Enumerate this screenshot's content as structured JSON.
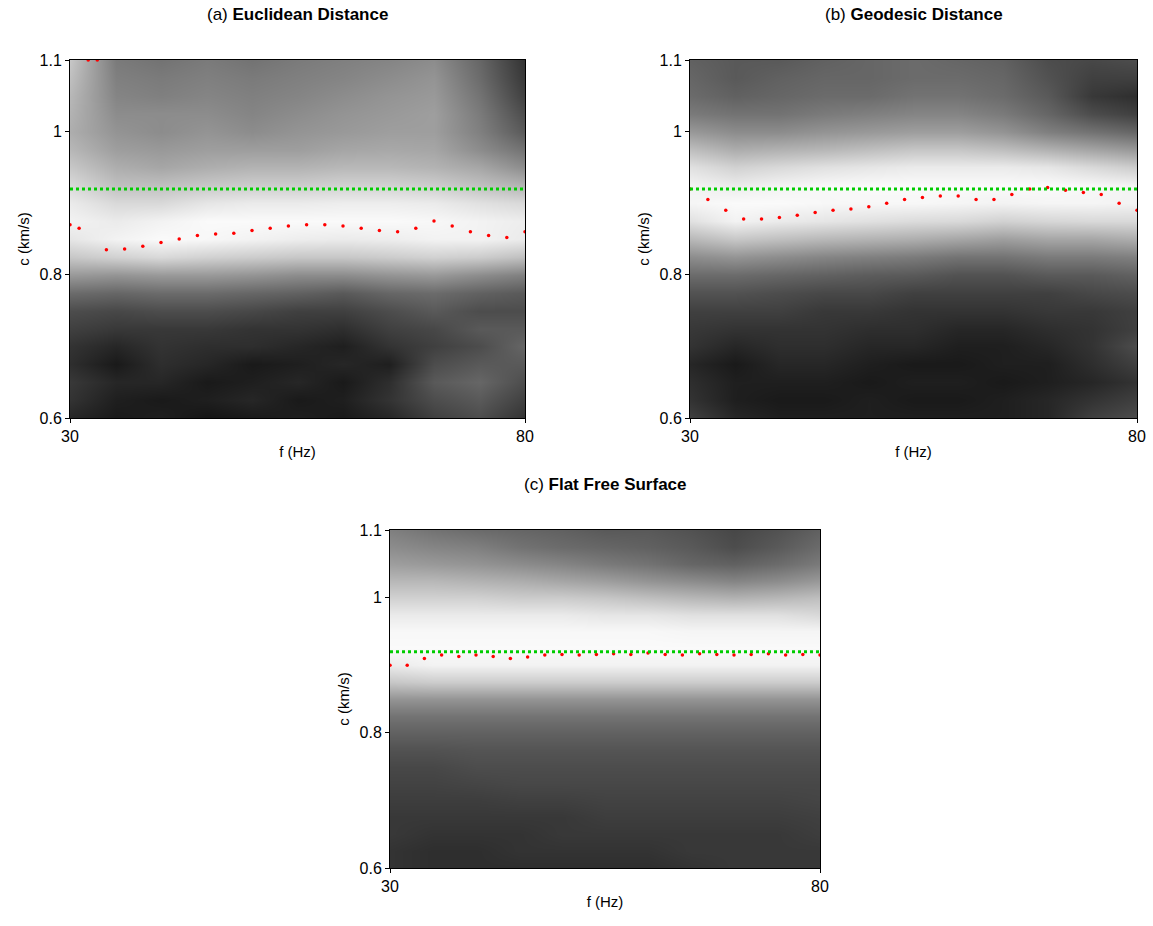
{
  "chart_data": [
    {
      "type": "heatmap",
      "title": "(a) Euclidean Distance",
      "x_label": "f (Hz)",
      "y_label": "c (km/s)",
      "xlim": [
        30,
        80
      ],
      "xticks": [
        30,
        80
      ],
      "ylim": [
        0.6,
        1.1
      ],
      "yticks": [
        0.6,
        0.8,
        1,
        1.1
      ],
      "zlim": [
        0,
        1
      ],
      "x": [
        30,
        35,
        40,
        45,
        50,
        55,
        60,
        65,
        70,
        75,
        80
      ],
      "y": [
        0.6,
        0.625,
        0.65,
        0.675,
        0.7,
        0.725,
        0.75,
        0.775,
        0.8,
        0.825,
        0.85,
        0.875,
        0.9,
        0.925,
        0.95,
        0.975,
        1.0,
        1.025,
        1.05,
        1.075,
        1.1
      ],
      "z": [
        [
          0.15,
          0.1,
          0.12,
          0.08,
          0.1,
          0.12,
          0.1,
          0.15,
          0.25,
          0.3,
          0.2
        ],
        [
          0.2,
          0.12,
          0.1,
          0.12,
          0.15,
          0.1,
          0.12,
          0.2,
          0.3,
          0.35,
          0.25
        ],
        [
          0.22,
          0.15,
          0.15,
          0.1,
          0.12,
          0.15,
          0.1,
          0.18,
          0.35,
          0.4,
          0.3
        ],
        [
          0.18,
          0.1,
          0.18,
          0.15,
          0.1,
          0.12,
          0.15,
          0.12,
          0.3,
          0.35,
          0.35
        ],
        [
          0.2,
          0.15,
          0.2,
          0.18,
          0.18,
          0.15,
          0.12,
          0.2,
          0.25,
          0.3,
          0.4
        ],
        [
          0.25,
          0.22,
          0.22,
          0.22,
          0.2,
          0.2,
          0.18,
          0.25,
          0.28,
          0.35,
          0.35
        ],
        [
          0.3,
          0.28,
          0.3,
          0.3,
          0.28,
          0.25,
          0.25,
          0.3,
          0.35,
          0.3,
          0.3
        ],
        [
          0.42,
          0.4,
          0.42,
          0.42,
          0.4,
          0.38,
          0.35,
          0.4,
          0.42,
          0.38,
          0.35
        ],
        [
          0.6,
          0.58,
          0.6,
          0.6,
          0.58,
          0.55,
          0.55,
          0.58,
          0.6,
          0.55,
          0.5
        ],
        [
          0.78,
          0.82,
          0.85,
          0.82,
          0.8,
          0.78,
          0.78,
          0.8,
          0.82,
          0.8,
          0.75
        ],
        [
          0.9,
          0.95,
          0.98,
          0.97,
          0.95,
          0.93,
          0.92,
          0.93,
          0.95,
          0.95,
          0.92
        ],
        [
          0.95,
          0.92,
          0.95,
          0.98,
          0.98,
          0.98,
          0.98,
          0.98,
          0.97,
          0.95,
          0.93
        ],
        [
          0.92,
          0.85,
          0.85,
          0.9,
          0.92,
          0.92,
          0.93,
          0.93,
          0.92,
          0.88,
          0.85
        ],
        [
          0.85,
          0.75,
          0.75,
          0.78,
          0.8,
          0.8,
          0.82,
          0.82,
          0.8,
          0.75,
          0.7
        ],
        [
          0.78,
          0.68,
          0.65,
          0.68,
          0.7,
          0.7,
          0.72,
          0.72,
          0.7,
          0.65,
          0.55
        ],
        [
          0.72,
          0.62,
          0.6,
          0.62,
          0.62,
          0.62,
          0.65,
          0.66,
          0.65,
          0.55,
          0.45
        ],
        [
          0.68,
          0.58,
          0.55,
          0.58,
          0.55,
          0.58,
          0.6,
          0.62,
          0.62,
          0.5,
          0.35
        ],
        [
          0.7,
          0.55,
          0.55,
          0.55,
          0.52,
          0.55,
          0.58,
          0.6,
          0.62,
          0.48,
          0.3
        ],
        [
          0.72,
          0.52,
          0.5,
          0.52,
          0.5,
          0.52,
          0.55,
          0.58,
          0.6,
          0.45,
          0.25
        ],
        [
          0.75,
          0.5,
          0.48,
          0.5,
          0.48,
          0.5,
          0.52,
          0.55,
          0.58,
          0.42,
          0.22
        ],
        [
          0.78,
          0.48,
          0.45,
          0.48,
          0.45,
          0.48,
          0.5,
          0.52,
          0.55,
          0.4,
          0.2
        ]
      ],
      "series": [
        {
          "type": "scatter",
          "color": "#ff0000",
          "marker": "dot",
          "x": [
            30,
            31,
            32,
            33,
            34,
            36,
            38,
            40,
            42,
            44,
            46,
            48,
            50,
            52,
            54,
            56,
            58,
            60,
            62,
            64,
            66,
            68,
            70,
            72,
            74,
            76,
            78,
            80
          ],
          "values": [
            0.87,
            0.865,
            1.1,
            1.1,
            0.835,
            0.836,
            0.84,
            0.845,
            0.85,
            0.855,
            0.857,
            0.858,
            0.862,
            0.865,
            0.868,
            0.87,
            0.87,
            0.868,
            0.865,
            0.862,
            0.86,
            0.865,
            0.875,
            0.868,
            0.86,
            0.855,
            0.852,
            0.86
          ]
        },
        {
          "type": "line",
          "color": "#00cc00",
          "line_style": "dotted",
          "x": [
            30,
            80
          ],
          "values": [
            0.92,
            0.92
          ]
        }
      ]
    },
    {
      "type": "heatmap",
      "title": "(b) Geodesic Distance",
      "x_label": "f (Hz)",
      "y_label": "c (km/s)",
      "xlim": [
        30,
        80
      ],
      "xticks": [
        30,
        80
      ],
      "ylim": [
        0.6,
        1.1
      ],
      "yticks": [
        0.6,
        0.8,
        1,
        1.1
      ],
      "zlim": [
        0,
        1
      ],
      "x": [
        30,
        35,
        40,
        45,
        50,
        55,
        60,
        65,
        70,
        75,
        80
      ],
      "y": [
        0.6,
        0.625,
        0.65,
        0.675,
        0.7,
        0.725,
        0.75,
        0.775,
        0.8,
        0.825,
        0.85,
        0.875,
        0.9,
        0.925,
        0.95,
        0.975,
        1.0,
        1.025,
        1.05,
        1.075,
        1.1
      ],
      "z": [
        [
          0.25,
          0.15,
          0.12,
          0.12,
          0.12,
          0.12,
          0.12,
          0.12,
          0.15,
          0.25,
          0.3
        ],
        [
          0.2,
          0.12,
          0.1,
          0.1,
          0.12,
          0.1,
          0.1,
          0.12,
          0.15,
          0.2,
          0.25
        ],
        [
          0.18,
          0.12,
          0.12,
          0.12,
          0.1,
          0.12,
          0.12,
          0.1,
          0.12,
          0.15,
          0.2
        ],
        [
          0.15,
          0.1,
          0.15,
          0.15,
          0.12,
          0.1,
          0.1,
          0.12,
          0.12,
          0.18,
          0.25
        ],
        [
          0.2,
          0.15,
          0.18,
          0.18,
          0.15,
          0.15,
          0.12,
          0.12,
          0.15,
          0.2,
          0.3
        ],
        [
          0.22,
          0.2,
          0.2,
          0.2,
          0.18,
          0.18,
          0.15,
          0.15,
          0.18,
          0.2,
          0.25
        ],
        [
          0.25,
          0.25,
          0.25,
          0.22,
          0.22,
          0.2,
          0.2,
          0.2,
          0.22,
          0.22,
          0.25
        ],
        [
          0.32,
          0.32,
          0.3,
          0.28,
          0.28,
          0.25,
          0.25,
          0.25,
          0.25,
          0.28,
          0.3
        ],
        [
          0.42,
          0.42,
          0.4,
          0.38,
          0.36,
          0.35,
          0.32,
          0.32,
          0.35,
          0.35,
          0.38
        ],
        [
          0.55,
          0.58,
          0.55,
          0.52,
          0.5,
          0.48,
          0.45,
          0.45,
          0.48,
          0.48,
          0.5
        ],
        [
          0.72,
          0.78,
          0.75,
          0.72,
          0.7,
          0.68,
          0.65,
          0.62,
          0.65,
          0.65,
          0.68
        ],
        [
          0.88,
          0.95,
          0.92,
          0.9,
          0.88,
          0.86,
          0.85,
          0.82,
          0.84,
          0.85,
          0.85
        ],
        [
          0.96,
          0.98,
          0.98,
          0.97,
          0.97,
          0.97,
          0.96,
          0.95,
          0.96,
          0.96,
          0.95
        ],
        [
          0.95,
          0.92,
          0.95,
          0.97,
          0.98,
          0.98,
          0.98,
          0.98,
          0.98,
          0.97,
          0.95
        ],
        [
          0.88,
          0.82,
          0.85,
          0.88,
          0.9,
          0.92,
          0.92,
          0.92,
          0.9,
          0.85,
          0.8
        ],
        [
          0.75,
          0.68,
          0.7,
          0.72,
          0.75,
          0.78,
          0.78,
          0.75,
          0.7,
          0.65,
          0.6
        ],
        [
          0.6,
          0.55,
          0.55,
          0.58,
          0.6,
          0.62,
          0.62,
          0.58,
          0.5,
          0.45,
          0.4
        ],
        [
          0.48,
          0.45,
          0.45,
          0.48,
          0.5,
          0.52,
          0.52,
          0.48,
          0.4,
          0.3,
          0.25
        ],
        [
          0.42,
          0.38,
          0.4,
          0.42,
          0.42,
          0.45,
          0.45,
          0.42,
          0.35,
          0.22,
          0.18
        ],
        [
          0.4,
          0.35,
          0.38,
          0.4,
          0.4,
          0.42,
          0.42,
          0.4,
          0.32,
          0.25,
          0.25
        ],
        [
          0.38,
          0.35,
          0.35,
          0.38,
          0.4,
          0.42,
          0.4,
          0.38,
          0.3,
          0.28,
          0.3
        ]
      ],
      "series": [
        {
          "type": "scatter",
          "color": "#ff0000",
          "marker": "dot",
          "x": [
            30,
            32,
            34,
            36,
            38,
            40,
            42,
            44,
            46,
            48,
            50,
            52,
            54,
            56,
            58,
            60,
            62,
            64,
            66,
            68,
            70,
            72,
            74,
            76,
            78,
            80
          ],
          "values": [
            0.92,
            0.905,
            0.89,
            0.878,
            0.878,
            0.88,
            0.883,
            0.887,
            0.89,
            0.892,
            0.895,
            0.9,
            0.905,
            0.908,
            0.91,
            0.91,
            0.905,
            0.905,
            0.912,
            0.92,
            0.922,
            0.918,
            0.915,
            0.912,
            0.9,
            0.89
          ]
        },
        {
          "type": "line",
          "color": "#00cc00",
          "line_style": "dotted",
          "x": [
            30,
            80
          ],
          "values": [
            0.92,
            0.92
          ]
        }
      ]
    },
    {
      "type": "heatmap",
      "title": "(c) Flat Free Surface",
      "x_label": "f (Hz)",
      "y_label": "c (km/s)",
      "xlim": [
        30,
        80
      ],
      "xticks": [
        30,
        80
      ],
      "ylim": [
        0.6,
        1.1
      ],
      "yticks": [
        0.6,
        0.8,
        1,
        1.1
      ],
      "zlim": [
        0,
        1
      ],
      "x": [
        30,
        35,
        40,
        45,
        50,
        55,
        60,
        65,
        70,
        75,
        80
      ],
      "y": [
        0.6,
        0.625,
        0.65,
        0.675,
        0.7,
        0.725,
        0.75,
        0.775,
        0.8,
        0.825,
        0.85,
        0.875,
        0.9,
        0.925,
        0.95,
        0.975,
        1.0,
        1.025,
        1.05,
        1.075,
        1.1
      ],
      "z": [
        [
          0.2,
          0.18,
          0.18,
          0.18,
          0.18,
          0.18,
          0.18,
          0.2,
          0.22,
          0.22,
          0.22
        ],
        [
          0.2,
          0.18,
          0.18,
          0.2,
          0.2,
          0.2,
          0.2,
          0.22,
          0.22,
          0.22,
          0.22
        ],
        [
          0.22,
          0.2,
          0.2,
          0.2,
          0.22,
          0.22,
          0.22,
          0.22,
          0.22,
          0.22,
          0.24
        ],
        [
          0.22,
          0.22,
          0.22,
          0.22,
          0.22,
          0.24,
          0.24,
          0.24,
          0.24,
          0.24,
          0.25
        ],
        [
          0.24,
          0.24,
          0.24,
          0.25,
          0.25,
          0.26,
          0.26,
          0.26,
          0.26,
          0.26,
          0.27
        ],
        [
          0.26,
          0.26,
          0.27,
          0.28,
          0.28,
          0.28,
          0.28,
          0.28,
          0.28,
          0.28,
          0.28
        ],
        [
          0.28,
          0.28,
          0.3,
          0.3,
          0.3,
          0.3,
          0.3,
          0.3,
          0.3,
          0.3,
          0.3
        ],
        [
          0.32,
          0.32,
          0.33,
          0.33,
          0.33,
          0.33,
          0.33,
          0.33,
          0.33,
          0.33,
          0.33
        ],
        [
          0.38,
          0.38,
          0.38,
          0.38,
          0.38,
          0.38,
          0.38,
          0.38,
          0.38,
          0.38,
          0.38
        ],
        [
          0.45,
          0.45,
          0.45,
          0.45,
          0.45,
          0.45,
          0.45,
          0.45,
          0.45,
          0.45,
          0.45
        ],
        [
          0.58,
          0.58,
          0.58,
          0.58,
          0.58,
          0.58,
          0.58,
          0.58,
          0.58,
          0.58,
          0.58
        ],
        [
          0.78,
          0.8,
          0.8,
          0.8,
          0.8,
          0.8,
          0.8,
          0.8,
          0.8,
          0.8,
          0.8
        ],
        [
          0.92,
          0.95,
          0.95,
          0.95,
          0.95,
          0.95,
          0.95,
          0.95,
          0.95,
          0.95,
          0.95
        ],
        [
          0.98,
          0.98,
          0.98,
          0.98,
          0.98,
          0.98,
          0.98,
          0.98,
          0.98,
          0.98,
          0.98
        ],
        [
          0.97,
          0.97,
          0.97,
          0.97,
          0.97,
          0.97,
          0.97,
          0.96,
          0.96,
          0.96,
          0.96
        ],
        [
          0.92,
          0.92,
          0.92,
          0.92,
          0.92,
          0.9,
          0.9,
          0.88,
          0.88,
          0.88,
          0.85
        ],
        [
          0.82,
          0.82,
          0.82,
          0.8,
          0.8,
          0.78,
          0.75,
          0.72,
          0.7,
          0.72,
          0.75
        ],
        [
          0.72,
          0.72,
          0.7,
          0.68,
          0.65,
          0.62,
          0.58,
          0.55,
          0.52,
          0.55,
          0.6
        ],
        [
          0.62,
          0.6,
          0.58,
          0.55,
          0.52,
          0.48,
          0.45,
          0.4,
          0.38,
          0.42,
          0.48
        ],
        [
          0.55,
          0.52,
          0.5,
          0.45,
          0.42,
          0.4,
          0.38,
          0.35,
          0.3,
          0.35,
          0.42
        ],
        [
          0.5,
          0.45,
          0.42,
          0.4,
          0.38,
          0.35,
          0.35,
          0.32,
          0.28,
          0.32,
          0.38
        ]
      ],
      "series": [
        {
          "type": "scatter",
          "color": "#ff0000",
          "marker": "dot",
          "x": [
            30,
            32,
            34,
            36,
            38,
            40,
            42,
            44,
            46,
            48,
            50,
            52,
            54,
            56,
            58,
            60,
            62,
            64,
            66,
            68,
            70,
            72,
            74,
            76,
            78,
            80
          ],
          "values": [
            0.9,
            0.9,
            0.91,
            0.915,
            0.913,
            0.915,
            0.913,
            0.91,
            0.912,
            0.915,
            0.916,
            0.915,
            0.916,
            0.917,
            0.916,
            0.918,
            0.916,
            0.915,
            0.917,
            0.916,
            0.915,
            0.916,
            0.917,
            0.915,
            0.916,
            0.915
          ]
        },
        {
          "type": "line",
          "color": "#00cc00",
          "line_style": "dotted",
          "x": [
            30,
            80
          ],
          "values": [
            0.92,
            0.92
          ]
        }
      ]
    }
  ]
}
